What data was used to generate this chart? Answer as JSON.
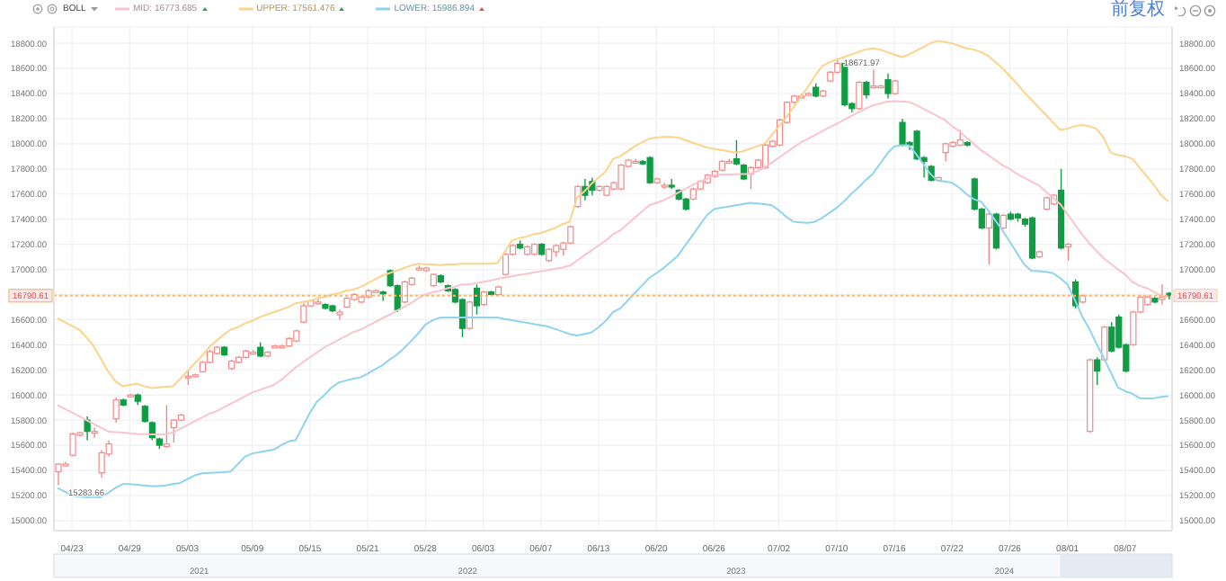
{
  "chart_data": {
    "type": "candlestick",
    "title": "BOLL",
    "legend": "top left",
    "grid": true,
    "categories": [
      null,
      null,
      "04/23",
      null,
      null,
      null,
      null,
      null,
      null,
      null,
      "04/29",
      null,
      null,
      null,
      null,
      null,
      null,
      null,
      "05/03",
      null,
      null,
      null,
      null,
      null,
      null,
      null,
      null,
      "05/09",
      null,
      null,
      null,
      null,
      null,
      null,
      null,
      "05/15",
      null,
      null,
      null,
      null,
      null,
      null,
      null,
      "05/21",
      null,
      null,
      null,
      null,
      null,
      null,
      null,
      "05/28",
      null,
      null,
      null,
      null,
      null,
      null,
      null,
      "06/03",
      null,
      null,
      null,
      null,
      null,
      null,
      null,
      "06/07",
      null,
      null,
      null,
      null,
      null,
      null,
      null,
      "06/13",
      null,
      null,
      null,
      null,
      null,
      null,
      null,
      "06/20",
      null,
      null,
      null,
      null,
      null,
      null,
      null,
      "06/26",
      null,
      null,
      null,
      null,
      null,
      null,
      null,
      null,
      "07/02",
      null,
      null,
      null,
      null,
      null,
      null,
      null,
      "07/10",
      null,
      null,
      null,
      null,
      null,
      null,
      null,
      "07/16",
      null,
      null,
      null,
      null,
      null,
      null,
      null,
      "07/22",
      null,
      null,
      null,
      null,
      null,
      null,
      null,
      "07/26",
      null,
      null,
      null,
      null,
      null,
      null,
      null,
      "08/01",
      null,
      null,
      null,
      null,
      null,
      null,
      null,
      "08/07",
      null,
      null,
      null,
      null,
      null,
      null
    ],
    "ohlc": [
      [
        15390,
        15455,
        15283.66,
        15450
      ],
      [
        15440,
        15470,
        15430,
        15450
      ],
      [
        15520,
        15700,
        15510,
        15690
      ],
      [
        15680,
        15710,
        15670,
        15700
      ],
      [
        15800,
        15830,
        15640,
        15710
      ],
      [
        15700,
        15740,
        15660,
        15710
      ],
      [
        15380,
        15560,
        15340,
        15540
      ],
      [
        15530,
        15640,
        15510,
        15610
      ],
      [
        15810,
        15980,
        15780,
        15960
      ],
      [
        15960,
        15970,
        15910,
        15920
      ],
      [
        15990,
        16010,
        15980,
        16000
      ],
      [
        16000,
        16010,
        15920,
        15950
      ],
      [
        15910,
        15920,
        15780,
        15790
      ],
      [
        15780,
        15790,
        15640,
        15660
      ],
      [
        15650,
        15660,
        15570,
        15600
      ],
      [
        15590,
        15920,
        15580,
        15610
      ],
      [
        15740,
        15810,
        15620,
        15800
      ],
      [
        15800,
        15850,
        15790,
        15840
      ],
      [
        16150,
        16200,
        16080,
        16150
      ],
      [
        16150,
        16170,
        16140,
        16160
      ],
      [
        16185,
        16270,
        16180,
        16260
      ],
      [
        16260,
        16360,
        16250,
        16345
      ],
      [
        16330,
        16390,
        16320,
        16380
      ],
      [
        16380,
        16390,
        16310,
        16320
      ],
      [
        16210,
        16280,
        16200,
        16270
      ],
      [
        16260,
        16310,
        16250,
        16300
      ],
      [
        16300,
        16360,
        16290,
        16350
      ],
      [
        16340,
        16360,
        16320,
        16340
      ],
      [
        16380,
        16420,
        16300,
        16310
      ],
      [
        16310,
        16350,
        16300,
        16340
      ],
      [
        16390,
        16400,
        16380,
        16390
      ],
      [
        16380,
        16400,
        16370,
        16390
      ],
      [
        16390,
        16460,
        16380,
        16450
      ],
      [
        16430,
        16520,
        16420,
        16510
      ],
      [
        16580,
        16730,
        16570,
        16710
      ],
      [
        16710,
        16760,
        16700,
        16750
      ],
      [
        16740,
        16780,
        16720,
        16740
      ],
      [
        16720,
        16730,
        16680,
        16690
      ],
      [
        16710,
        16720,
        16660,
        16670
      ],
      [
        16640,
        16680,
        16600,
        16660
      ],
      [
        16700,
        16780,
        16690,
        16770
      ],
      [
        16760,
        16810,
        16750,
        16800
      ],
      [
        16740,
        16790,
        16730,
        16780
      ],
      [
        16780,
        16840,
        16770,
        16830
      ],
      [
        16830,
        16840,
        16820,
        16830
      ],
      [
        16820,
        16830,
        16750,
        16810
      ],
      [
        16990,
        17000,
        16860,
        16870
      ],
      [
        16870,
        16880,
        16660,
        16680
      ],
      [
        16740,
        16910,
        16730,
        16900
      ],
      [
        16880,
        16940,
        16870,
        16930
      ],
      [
        17010,
        17030,
        16990,
        17010
      ],
      [
        16990,
        17020,
        16980,
        17010
      ],
      [
        16870,
        16970,
        16860,
        16960
      ],
      [
        16950,
        16960,
        16890,
        16900
      ],
      [
        16870,
        16880,
        16820,
        16830
      ],
      [
        16840,
        16850,
        16730,
        16740
      ],
      [
        16760,
        16770,
        16460,
        16530
      ],
      [
        16530,
        16750,
        16520,
        16740
      ],
      [
        16850,
        16880,
        16640,
        16710
      ],
      [
        16720,
        16830,
        16710,
        16820
      ],
      [
        16820,
        16830,
        16790,
        16800
      ],
      [
        16800,
        16870,
        16790,
        16860
      ],
      [
        16960,
        17130,
        16950,
        17120
      ],
      [
        17120,
        17200,
        17110,
        17190
      ],
      [
        17200,
        17230,
        17160,
        17170
      ],
      [
        17120,
        17190,
        17110,
        17180
      ],
      [
        17120,
        17210,
        17110,
        17200
      ],
      [
        17200,
        17210,
        17110,
        17120
      ],
      [
        17070,
        17170,
        17060,
        17160
      ],
      [
        17140,
        17200,
        17100,
        17190
      ],
      [
        17160,
        17220,
        17110,
        17210
      ],
      [
        17210,
        17350,
        17200,
        17340
      ],
      [
        17500,
        17670,
        17490,
        17660
      ],
      [
        17660,
        17720,
        17550,
        17590
      ],
      [
        17700,
        17730,
        17590,
        17630
      ],
      [
        17630,
        17670,
        17620,
        17660
      ],
      [
        17590,
        17670,
        17580,
        17660
      ],
      [
        17640,
        17700,
        17630,
        17690
      ],
      [
        17640,
        17840,
        17630,
        17830
      ],
      [
        17820,
        17880,
        17810,
        17870
      ],
      [
        17860,
        17880,
        17840,
        17860
      ],
      [
        17860,
        17870,
        17830,
        17840
      ],
      [
        17890,
        17900,
        17680,
        17690
      ],
      [
        17690,
        17730,
        17680,
        17720
      ],
      [
        17670,
        17690,
        17640,
        17670
      ],
      [
        17670,
        17720,
        17640,
        17660
      ],
      [
        17630,
        17640,
        17550,
        17560
      ],
      [
        17560,
        17570,
        17470,
        17480
      ],
      [
        17560,
        17650,
        17550,
        17640
      ],
      [
        17640,
        17710,
        17630,
        17700
      ],
      [
        17690,
        17760,
        17680,
        17750
      ],
      [
        17740,
        17790,
        17730,
        17780
      ],
      [
        17790,
        17870,
        17780,
        17860
      ],
      [
        17860,
        17880,
        17840,
        17860
      ],
      [
        17880,
        18030,
        17830,
        17840
      ],
      [
        17830,
        17840,
        17710,
        17720
      ],
      [
        17760,
        17820,
        17640,
        17810
      ],
      [
        17810,
        17880,
        17800,
        17870
      ],
      [
        17810,
        18000,
        17800,
        17990
      ],
      [
        17980,
        18030,
        17970,
        18020
      ],
      [
        17990,
        18200,
        17980,
        18190
      ],
      [
        18170,
        18340,
        18160,
        18330
      ],
      [
        18330,
        18390,
        18320,
        18380
      ],
      [
        18380,
        18400,
        18360,
        18380
      ],
      [
        18400,
        18410,
        18390,
        18400
      ],
      [
        18450,
        18480,
        18370,
        18380
      ],
      [
        18380,
        18430,
        18370,
        18420
      ],
      [
        18500,
        18580,
        18490,
        18570
      ],
      [
        18570,
        18671.97,
        18560,
        18640
      ],
      [
        18640,
        18660,
        18300,
        18310
      ],
      [
        18320,
        18330,
        18250,
        18280
      ],
      [
        18280,
        18500,
        18270,
        18490
      ],
      [
        18490,
        18500,
        18360,
        18390
      ],
      [
        18460,
        18590,
        18440,
        18460
      ],
      [
        18460,
        18470,
        18450,
        18460
      ],
      [
        18510,
        18560,
        18360,
        18400
      ],
      [
        18400,
        18510,
        18390,
        18500
      ],
      [
        18170,
        18200,
        17980,
        17990
      ],
      [
        18010,
        18020,
        17950,
        17990
      ],
      [
        18100,
        18110,
        17870,
        17880
      ],
      [
        17890,
        17900,
        17730,
        17860
      ],
      [
        17820,
        17830,
        17700,
        17710
      ],
      [
        17710,
        17740,
        17700,
        17730
      ],
      [
        17930,
        18010,
        17860,
        18000
      ],
      [
        17980,
        18020,
        17970,
        18010
      ],
      [
        17990,
        18110,
        17980,
        18030
      ],
      [
        18010,
        18020,
        17980,
        17990
      ],
      [
        17720,
        17730,
        17470,
        17480
      ],
      [
        17480,
        17490,
        17320,
        17330
      ],
      [
        17330,
        17450,
        17040,
        17440
      ],
      [
        17440,
        17450,
        17160,
        17170
      ],
      [
        17330,
        17440,
        17320,
        17430
      ],
      [
        17440,
        17460,
        17390,
        17400
      ],
      [
        17440,
        17450,
        17380,
        17410
      ],
      [
        17400,
        17410,
        17340,
        17360
      ],
      [
        17410,
        17420,
        17080,
        17090
      ],
      [
        17100,
        17150,
        17090,
        17140
      ],
      [
        17480,
        17580,
        17470,
        17570
      ],
      [
        17520,
        17600,
        17510,
        17590
      ],
      [
        17630,
        17800,
        17160,
        17170
      ],
      [
        17180,
        17210,
        17070,
        17200
      ],
      [
        16900,
        16920,
        16690,
        16710
      ],
      [
        16740,
        16800,
        16730,
        16790
      ],
      [
        15710,
        16290,
        15700,
        16280
      ],
      [
        16280,
        16300,
        16080,
        16190
      ],
      [
        16280,
        16550,
        16270,
        16540
      ],
      [
        16540,
        16580,
        16340,
        16350
      ],
      [
        16620,
        16640,
        16370,
        16380
      ],
      [
        16400,
        16410,
        16180,
        16190
      ],
      [
        16400,
        16670,
        16390,
        16660
      ],
      [
        16660,
        16790,
        16650,
        16780
      ],
      [
        16720,
        16790,
        16710,
        16780
      ],
      [
        16770,
        16780,
        16730,
        16740
      ],
      [
        16760,
        16880,
        16720,
        16780
      ],
      [
        16810,
        16820,
        16760,
        16790.61
      ]
    ],
    "series": [
      {
        "name": "MID: 16773.685",
        "type": "line",
        "color": "#f9c4cd",
        "values": [
          15920,
          15890,
          15860,
          15830,
          15800,
          15770,
          15740,
          15710,
          15705,
          15700,
          15695,
          15690,
          15688,
          15687,
          15687,
          15687,
          15700,
          15730,
          15760,
          15790,
          15820,
          15850,
          15870,
          15900,
          15930,
          15960,
          15990,
          16020,
          16040,
          16060,
          16080,
          16120,
          16170,
          16220,
          16260,
          16300,
          16340,
          16380,
          16410,
          16440,
          16470,
          16500,
          16520,
          16550,
          16580,
          16610,
          16640,
          16670,
          16700,
          16730,
          16770,
          16800,
          16820,
          16830,
          16850,
          16860,
          16880,
          16880,
          16890,
          16900,
          16910,
          16925,
          16935,
          16945,
          16955,
          16965,
          16975,
          16985,
          16995,
          17005,
          17015,
          17030,
          17070,
          17110,
          17150,
          17190,
          17230,
          17280,
          17310,
          17360,
          17410,
          17460,
          17510,
          17530,
          17550,
          17580,
          17610,
          17640,
          17670,
          17700,
          17720,
          17750,
          17755,
          17755,
          17758,
          17760,
          17760,
          17780,
          17810,
          17850,
          17890,
          17930,
          17970,
          18010,
          18040,
          18070,
          18100,
          18130,
          18160,
          18190,
          18220,
          18250,
          18280,
          18305,
          18320,
          18335,
          18340,
          18338,
          18333,
          18310,
          18280,
          18250,
          18220,
          18190,
          18140,
          18100,
          18050,
          18000,
          17950,
          17910,
          17870,
          17830,
          17800,
          17760,
          17730,
          17700,
          17670,
          17620,
          17570,
          17520,
          17440,
          17360,
          17280,
          17210,
          17150,
          17090,
          17045,
          17000,
          16960,
          16900,
          16870,
          16850,
          16820,
          16790,
          16780
        ]
      },
      {
        "name": "UPPER: 17561.476",
        "type": "line",
        "color": "#fcd38a",
        "values": [
          16610,
          16580,
          16550,
          16520,
          16460,
          16390,
          16290,
          16190,
          16110,
          16070,
          16080,
          16090,
          16070,
          16055,
          16060,
          16065,
          16070,
          16130,
          16190,
          16250,
          16310,
          16380,
          16430,
          16480,
          16520,
          16540,
          16570,
          16590,
          16620,
          16640,
          16660,
          16680,
          16700,
          16730,
          16740,
          16750,
          16770,
          16780,
          16800,
          16810,
          16830,
          16840,
          16860,
          16890,
          16920,
          16950,
          16970,
          16990,
          17010,
          17030,
          17045,
          17040,
          17040,
          17035,
          17040,
          17040,
          17045,
          17045,
          17045,
          17045,
          17045,
          17050,
          17140,
          17230,
          17250,
          17260,
          17280,
          17290,
          17310,
          17330,
          17360,
          17380,
          17570,
          17620,
          17680,
          17730,
          17780,
          17880,
          17900,
          17940,
          17980,
          18010,
          18040,
          18050,
          18055,
          18055,
          18050,
          18030,
          18010,
          17990,
          17970,
          17960,
          17950,
          17940,
          17930,
          17940,
          17960,
          17980,
          18000,
          18070,
          18140,
          18210,
          18290,
          18370,
          18450,
          18540,
          18620,
          18650,
          18670,
          18690,
          18710,
          18730,
          18750,
          18760,
          18750,
          18730,
          18710,
          18690,
          18710,
          18740,
          18770,
          18800,
          18820,
          18810,
          18800,
          18780,
          18760,
          18750,
          18730,
          18700,
          18650,
          18600,
          18540,
          18480,
          18410,
          18350,
          18290,
          18230,
          18170,
          18110,
          18120,
          18140,
          18150,
          18140,
          18120,
          18050,
          17930,
          17910,
          17900,
          17880,
          17810,
          17740,
          17670,
          17590,
          17540
        ]
      },
      {
        "name": "LOWER: 15986.894",
        "type": "line",
        "color": "#8fd3ef",
        "values": [
          15260,
          15230,
          15200,
          15190,
          15187,
          15187,
          15187,
          15220,
          15260,
          15290,
          15290,
          15285,
          15280,
          15275,
          15275,
          15280,
          15290,
          15300,
          15330,
          15360,
          15377,
          15380,
          15382,
          15385,
          15390,
          15450,
          15510,
          15535,
          15545,
          15555,
          15565,
          15600,
          15630,
          15640,
          15750,
          15860,
          15950,
          16000,
          16060,
          16100,
          16115,
          16130,
          16140,
          16170,
          16205,
          16235,
          16280,
          16320,
          16370,
          16430,
          16490,
          16560,
          16595,
          16615,
          16617,
          16617,
          16617,
          16617,
          16617,
          16617,
          16617,
          16617,
          16605,
          16595,
          16585,
          16575,
          16565,
          16555,
          16545,
          16525,
          16505,
          16485,
          16474,
          16485,
          16497,
          16540,
          16590,
          16660,
          16690,
          16750,
          16810,
          16870,
          16930,
          16970,
          17010,
          17060,
          17110,
          17190,
          17270,
          17350,
          17430,
          17480,
          17490,
          17500,
          17510,
          17520,
          17530,
          17525,
          17520,
          17510,
          17470,
          17420,
          17380,
          17375,
          17370,
          17380,
          17410,
          17450,
          17490,
          17540,
          17600,
          17650,
          17710,
          17760,
          17840,
          17920,
          17980,
          17989,
          17989,
          17920,
          17840,
          17760,
          17705,
          17700,
          17690,
          17650,
          17600,
          17560,
          17540,
          17470,
          17390,
          17310,
          17220,
          17130,
          17040,
          16990,
          16985,
          16980,
          16970,
          16930,
          16880,
          16760,
          16630,
          16530,
          16410,
          16300,
          16180,
          16060,
          16030,
          16010,
          15975,
          15970,
          15975,
          15985,
          15990
        ]
      }
    ],
    "ylim": [
      14920,
      18930
    ],
    "yticks": [
      {
        "value": 15000,
        "label": "15000.00"
      },
      {
        "value": 15200,
        "label": "15200.00"
      },
      {
        "value": 15400,
        "label": "15400.00"
      },
      {
        "value": 15600,
        "label": "15600.00"
      },
      {
        "value": 15800,
        "label": "15800.00"
      },
      {
        "value": 16000,
        "label": "16000.00"
      },
      {
        "value": 16200,
        "label": "16200.00"
      },
      {
        "value": 16400,
        "label": "16400.00"
      },
      {
        "value": 16600,
        "label": "16600.00"
      },
      {
        "value": 16800,
        "label": null
      },
      {
        "value": 17000,
        "label": "17000.00"
      },
      {
        "value": 17200,
        "label": "17200.00"
      },
      {
        "value": 17400,
        "label": "17400.00"
      },
      {
        "value": 17600,
        "label": "17600.00"
      },
      {
        "value": 17800,
        "label": "17800.00"
      },
      {
        "value": 18000,
        "label": "18000.00"
      },
      {
        "value": 18200,
        "label": "18200.00"
      },
      {
        "value": 18400,
        "label": "18400.00"
      },
      {
        "value": 18600,
        "label": "18600.00"
      },
      {
        "value": 18800,
        "label": "18800.00"
      }
    ],
    "y2lim": [
      14920,
      18930
    ],
    "y2ticks": [
      {
        "value": 15000,
        "label": "15000.00"
      },
      {
        "value": 15200,
        "label": "15200.00"
      },
      {
        "value": 15400,
        "label": "15400.00"
      },
      {
        "value": 15600,
        "label": "15600.00"
      },
      {
        "value": 15800,
        "label": "15800.00"
      },
      {
        "value": 16000,
        "label": "16000.00"
      },
      {
        "value": 16200,
        "label": "16200.00"
      },
      {
        "value": 16400,
        "label": "16400.00"
      },
      {
        "value": 16600,
        "label": "16600.00"
      },
      {
        "value": 16800,
        "label": null
      },
      {
        "value": 17000,
        "label": "17000.00"
      },
      {
        "value": 17200,
        "label": "17200.00"
      },
      {
        "value": 17400,
        "label": "17400.00"
      },
      {
        "value": 17600,
        "label": "17600.00"
      },
      {
        "value": 17800,
        "label": "17800.00"
      },
      {
        "value": 18000,
        "label": "18000.00"
      },
      {
        "value": 18200,
        "label": "18200.00"
      },
      {
        "value": 18400,
        "label": "18400.00"
      },
      {
        "value": 18600,
        "label": "18600.00"
      },
      {
        "value": 18800,
        "label": "18800.00"
      }
    ],
    "ref_lines": [
      {
        "axis": "y",
        "value": 16790.61,
        "label": "16790.61",
        "color": "#f6b97a",
        "line_style": "dotted"
      }
    ],
    "annotations": [
      "前复权",
      "15283.66",
      {
        "text": "18671.97",
        "y": 18671.97
      },
      "2021",
      "2022",
      "2023",
      "2024"
    ]
  }
}
